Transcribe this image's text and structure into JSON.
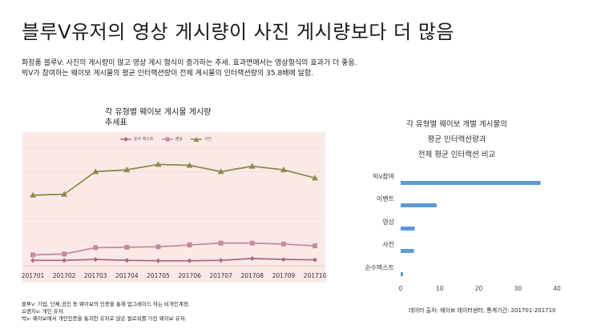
{
  "page": {
    "title": "블루V유저의 영상 게시량이 사진 게시량보다 더 많음",
    "desc_line1": "화장품 블루V:  사진의 게시량이 많고 영상 게시 형식이 증가하는 추세. 효과면에서는 영상형식의 효과가 더 좋음.",
    "desc_line2": "빅V가 참여하는 웨이보 게시물의 평균 인터랙션량이 전체 게시물의 인터랙션량의 35.8배에 달함.",
    "note_left_1": "블루v: 기업, 단체,공인 등 웨이보의 인증을 통해  업그레이드 하는 비개인계정.",
    "note_left_2": "오렌지v: 개인 유저.",
    "note_left_3": "빅v: 웨이보에서 개인인증을 통과한 유저로 많은 팔로워를 가진 웨이보 유저.",
    "note_right": "데이터 출처: 웨이보 데이터센터, 통계기간: 201701-201710"
  },
  "colors": {
    "text": "#ff7f7f",
    "video": "#b06b80",
    "photo": "#8b8b4a",
    "hbar": "#5b9bd5",
    "chart_bg": "#fbe9e8"
  },
  "chart_data": [
    {
      "type": "line",
      "title": "각 유형별 웨이보 게시물 게시량 추세표",
      "categories": [
        "201701",
        "201702",
        "201703",
        "201704",
        "201705",
        "201706",
        "201707",
        "201708",
        "201709",
        "201710"
      ],
      "series": [
        {
          "name": "순수 텍스트",
          "marker": "diamond",
          "values": [
            6,
            6,
            7,
            6,
            5.5,
            5.5,
            6,
            8,
            7,
            6.5
          ]
        },
        {
          "name": "영상",
          "marker": "square",
          "values": [
            12,
            13,
            20,
            20.5,
            21,
            23,
            25,
            25,
            24,
            22
          ]
        },
        {
          "name": "사진",
          "marker": "triangle",
          "values": [
            78,
            79,
            104,
            106,
            112,
            111,
            104,
            110,
            106,
            97
          ]
        }
      ],
      "ylim": [
        0,
        130
      ],
      "grid": "horizontal",
      "legend": "top"
    },
    {
      "type": "bar",
      "orientation": "horizontal",
      "title_lines": [
        "각 유형별 웨이보 개별 게시물의",
        "평균 인터랙션량과",
        "전체 평균 인터랙션 비교"
      ],
      "categories": [
        "빅v참여",
        "이벤트",
        "영상",
        "사진",
        "순수텍스트"
      ],
      "values": [
        35.8,
        9.2,
        3.6,
        3.4,
        0.6
      ],
      "xticks": [
        0,
        10,
        20,
        30,
        40
      ],
      "xlim": [
        0,
        40
      ]
    }
  ]
}
